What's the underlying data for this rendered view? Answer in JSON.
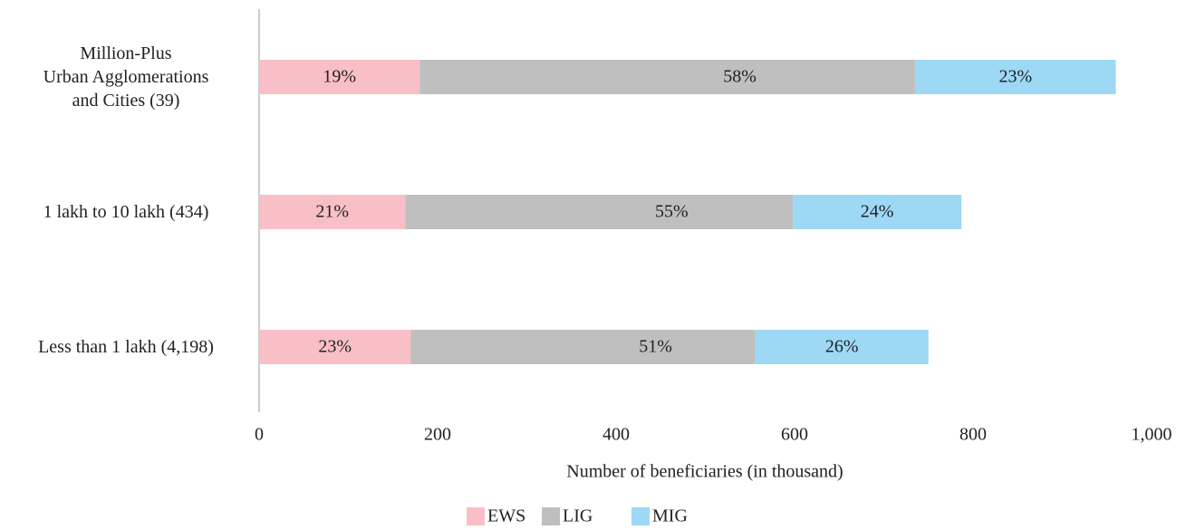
{
  "chart_data": {
    "type": "stacked-bar-horizontal",
    "categories": [
      "Million-Plus\nUrban Agglomerations\nand Cities (39)",
      "1 lakh to 10 lakh (434)",
      "Less than 1 lakh (4,198)"
    ],
    "series": [
      {
        "name": "EWS",
        "color": "#f9bfc6",
        "values": [
          180,
          164,
          170
        ],
        "percent_labels": [
          "19%",
          "21%",
          "23%"
        ]
      },
      {
        "name": "LIG",
        "color": "#bfbfbf",
        "values": [
          555,
          434,
          386
        ],
        "percent_labels": [
          "58%",
          "55%",
          "51%"
        ]
      },
      {
        "name": "MIG",
        "color": "#9dd8f5",
        "values": [
          225,
          189,
          194
        ],
        "percent_labels": [
          "23%",
          "24%",
          "26%"
        ]
      }
    ],
    "xlabel": "Number of beneficiaries (in thousand)",
    "xlim": [
      0,
      1000
    ],
    "xticks": [
      0,
      200,
      400,
      600,
      800,
      {
        "value": 1000,
        "label": "1,000"
      }
    ],
    "legend": "bottom"
  }
}
